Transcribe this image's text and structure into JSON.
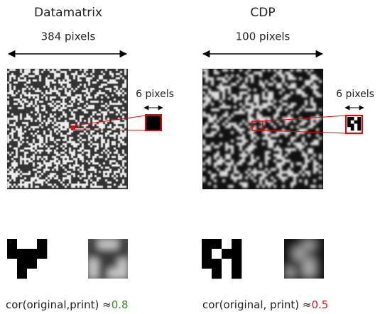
{
  "left": {
    "title": "Datamatrix",
    "width_label": "384 pixels",
    "zoom_label": "6 pixels",
    "correlation_label": "cor(original,print) ≈",
    "correlation_value": "0.8"
  },
  "right": {
    "title": "CDP",
    "width_label": "100 pixels",
    "zoom_label": "6 pixels",
    "correlation_label": "cor(original, print) ≈",
    "correlation_value": "0.5"
  }
}
